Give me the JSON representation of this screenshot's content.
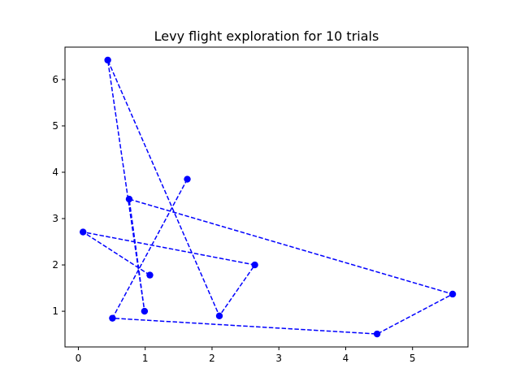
{
  "chart_data": {
    "type": "line",
    "title": "Levy flight exploration for 10 trials",
    "xlabel": "",
    "ylabel": "",
    "xlim": [
      -0.2,
      5.83
    ],
    "ylim": [
      0.23,
      6.7
    ],
    "xticks": [
      0,
      1,
      2,
      3,
      4,
      5
    ],
    "yticks": [
      1,
      2,
      3,
      4,
      5,
      6
    ],
    "grid": false,
    "series": [
      {
        "color": "#0000ff",
        "linestyle": "dashed",
        "marker": "circle",
        "x": [
          1.63,
          0.51,
          4.47,
          5.6,
          0.76,
          0.99,
          0.44,
          2.11,
          2.64,
          0.07,
          1.07
        ],
        "y": [
          3.85,
          0.85,
          0.51,
          1.37,
          3.42,
          1.0,
          6.42,
          0.9,
          2.0,
          2.71,
          1.78
        ]
      }
    ]
  }
}
